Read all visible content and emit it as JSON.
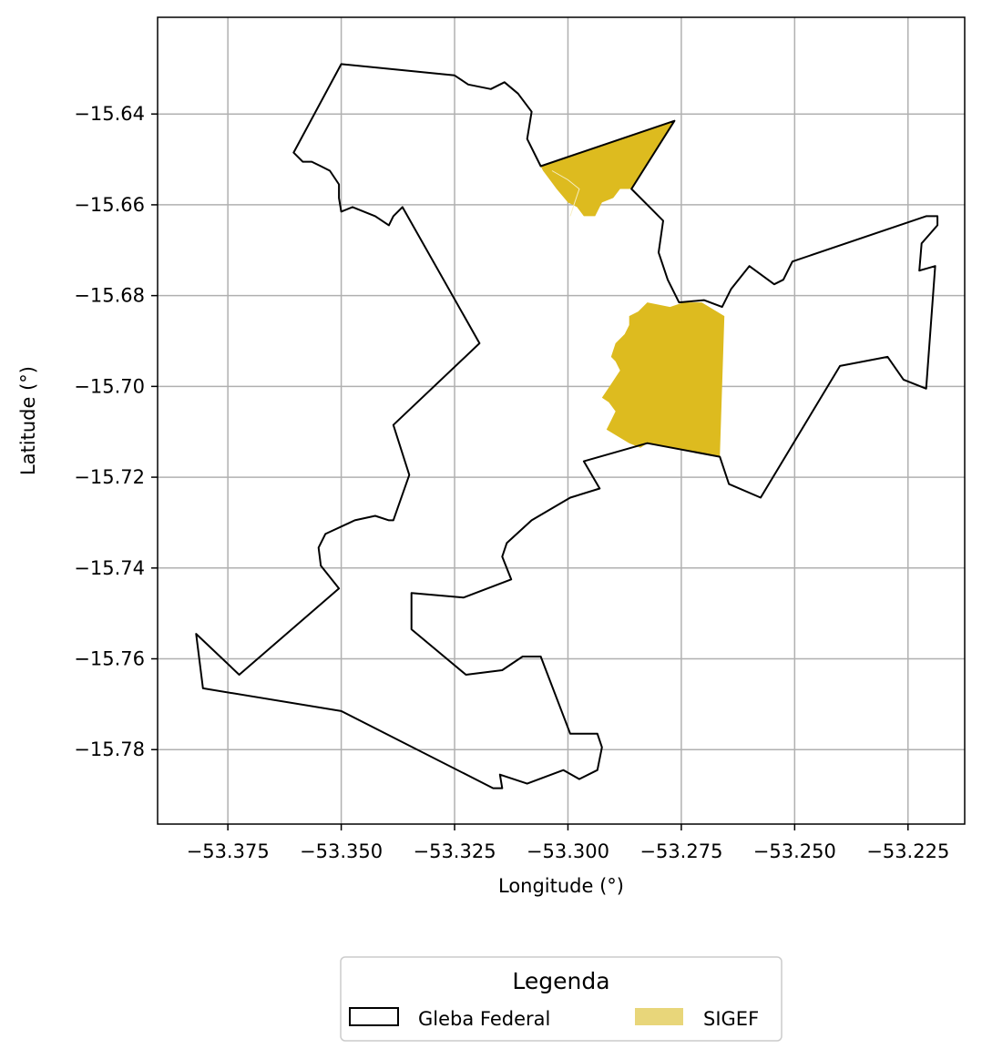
{
  "chart_data": {
    "type": "map",
    "xlabel": "Longitude (°)",
    "ylabel": "Latitude (°)",
    "xlim": [
      -53.3905,
      -53.2125
    ],
    "ylim": [
      -15.7964,
      -15.6187
    ],
    "grid": true,
    "x_ticks": [
      -53.375,
      -53.35,
      -53.325,
      -53.3,
      -53.275,
      -53.25,
      -53.225
    ],
    "x_tick_labels": [
      "−53.375",
      "−53.350",
      "−53.325",
      "−53.300",
      "−53.275",
      "−53.250",
      "−53.225"
    ],
    "y_ticks": [
      -15.64,
      -15.66,
      -15.68,
      -15.7,
      -15.72,
      -15.74,
      -15.76,
      -15.78
    ],
    "y_tick_labels": [
      "−15.64",
      "−15.66",
      "−15.68",
      "−15.70",
      "−15.72",
      "−15.74",
      "−15.76",
      "−15.78"
    ],
    "legend": {
      "title": "Legenda",
      "placement": "bottom-center",
      "entries": [
        "Gleba Federal",
        "SIGEF"
      ]
    },
    "colors": {
      "gleba_edge": "#000000",
      "sigef_fill": "#ddbb1f",
      "sigef_legend_fill": "#e8d67a",
      "grid": "#b0b0b0"
    },
    "gleba_federal_boundary": [
      [
        -53.35,
        -15.629
      ],
      [
        -53.325,
        -15.6315
      ],
      [
        -53.322,
        -15.6335
      ],
      [
        -53.317,
        -15.6345
      ],
      [
        -53.314,
        -15.633
      ],
      [
        -53.311,
        -15.6355
      ],
      [
        -53.308,
        -15.6395
      ],
      [
        -53.309,
        -15.6455
      ],
      [
        -53.306,
        -15.6515
      ],
      [
        -53.2765,
        -15.6415
      ],
      [
        -53.286,
        -15.6565
      ],
      [
        -53.282,
        -15.6605
      ],
      [
        -53.279,
        -15.6635
      ],
      [
        -53.28,
        -15.6705
      ],
      [
        -53.278,
        -15.6765
      ],
      [
        -53.2755,
        -15.6815
      ],
      [
        -53.27,
        -15.681
      ],
      [
        -53.266,
        -15.6825
      ],
      [
        -53.264,
        -15.6785
      ],
      [
        -53.26,
        -15.6735
      ],
      [
        -53.2545,
        -15.6775
      ],
      [
        -53.2525,
        -15.6765
      ],
      [
        -53.2505,
        -15.6725
      ],
      [
        -53.221,
        -15.6625
      ],
      [
        -53.2185,
        -15.6625
      ],
      [
        -53.2185,
        -15.6645
      ],
      [
        -53.222,
        -15.6685
      ],
      [
        -53.2225,
        -15.6745
      ],
      [
        -53.219,
        -15.6735
      ],
      [
        -53.221,
        -15.7005
      ],
      [
        -53.226,
        -15.6985
      ],
      [
        -53.2295,
        -15.6935
      ],
      [
        -53.24,
        -15.6955
      ],
      [
        -53.2575,
        -15.7245
      ],
      [
        -53.2645,
        -15.7215
      ],
      [
        -53.2665,
        -15.7155
      ],
      [
        -53.2825,
        -15.7125
      ],
      [
        -53.2965,
        -15.7165
      ],
      [
        -53.293,
        -15.7225
      ],
      [
        -53.2995,
        -15.7245
      ],
      [
        -53.308,
        -15.7295
      ],
      [
        -53.3135,
        -15.7345
      ],
      [
        -53.3145,
        -15.7375
      ],
      [
        -53.3125,
        -15.7425
      ],
      [
        -53.323,
        -15.7465
      ],
      [
        -53.3345,
        -15.7455
      ],
      [
        -53.3345,
        -15.7535
      ],
      [
        -53.3225,
        -15.7635
      ],
      [
        -53.3145,
        -15.7625
      ],
      [
        -53.31,
        -15.7595
      ],
      [
        -53.306,
        -15.7595
      ],
      [
        -53.2995,
        -15.7765
      ],
      [
        -53.2935,
        -15.7765
      ],
      [
        -53.2925,
        -15.7795
      ],
      [
        -53.2935,
        -15.7845
      ],
      [
        -53.2975,
        -15.7865
      ],
      [
        -53.301,
        -15.7845
      ],
      [
        -53.309,
        -15.7875
      ],
      [
        -53.315,
        -15.7855
      ],
      [
        -53.3145,
        -15.7885
      ],
      [
        -53.3165,
        -15.7885
      ],
      [
        -53.35,
        -15.7715
      ],
      [
        -53.3805,
        -15.7665
      ],
      [
        -53.382,
        -15.7545
      ],
      [
        -53.3725,
        -15.7635
      ],
      [
        -53.3505,
        -15.7445
      ],
      [
        -53.3545,
        -15.7395
      ],
      [
        -53.355,
        -15.7355
      ],
      [
        -53.3535,
        -15.7325
      ],
      [
        -53.347,
        -15.7295
      ],
      [
        -53.3425,
        -15.7285
      ],
      [
        -53.3395,
        -15.7295
      ],
      [
        -53.3385,
        -15.7295
      ],
      [
        -53.335,
        -15.7195
      ],
      [
        -53.3385,
        -15.7085
      ],
      [
        -53.3195,
        -15.6905
      ],
      [
        -53.3365,
        -15.6605
      ],
      [
        -53.3385,
        -15.6625
      ],
      [
        -53.3395,
        -15.6645
      ],
      [
        -53.3425,
        -15.6625
      ],
      [
        -53.3475,
        -15.6605
      ],
      [
        -53.35,
        -15.6615
      ],
      [
        -53.3505,
        -15.6585
      ],
      [
        -53.3505,
        -15.6555
      ],
      [
        -53.3525,
        -15.6525
      ],
      [
        -53.3545,
        -15.6515
      ],
      [
        -53.3565,
        -15.6505
      ],
      [
        -53.3585,
        -15.6505
      ],
      [
        -53.3605,
        -15.6485
      ],
      [
        -53.35,
        -15.629
      ]
    ],
    "sigef_parcels": [
      [
        [
          -53.306,
          -15.6515
        ],
        [
          -53.2765,
          -15.6415
        ],
        [
          -53.286,
          -15.6565
        ],
        [
          -53.2885,
          -15.6565
        ],
        [
          -53.29,
          -15.6585
        ],
        [
          -53.2925,
          -15.6595
        ],
        [
          -53.294,
          -15.6625
        ],
        [
          -53.2965,
          -15.6625
        ],
        [
          -53.298,
          -15.6605
        ],
        [
          -53.3,
          -15.6595
        ],
        [
          -53.3025,
          -15.6565
        ],
        [
          -53.304,
          -15.6545
        ],
        [
          -53.3055,
          -15.6525
        ],
        [
          -53.306,
          -15.6515
        ]
      ],
      [
        [
          -53.2825,
          -15.6815
        ],
        [
          -53.2775,
          -15.6825
        ],
        [
          -53.2745,
          -15.6815
        ],
        [
          -53.2705,
          -15.6815
        ],
        [
          -53.2655,
          -15.6845
        ],
        [
          -53.2665,
          -15.7155
        ],
        [
          -53.2825,
          -15.7125
        ],
        [
          -53.284,
          -15.7135
        ],
        [
          -53.2865,
          -15.7125
        ],
        [
          -53.2915,
          -15.7095
        ],
        [
          -53.2905,
          -15.7075
        ],
        [
          -53.2895,
          -15.7055
        ],
        [
          -53.291,
          -15.7035
        ],
        [
          -53.2925,
          -15.7025
        ],
        [
          -53.2905,
          -15.6995
        ],
        [
          -53.2885,
          -15.6965
        ],
        [
          -53.2895,
          -15.6945
        ],
        [
          -53.2905,
          -15.6935
        ],
        [
          -53.2895,
          -15.6905
        ],
        [
          -53.2875,
          -15.6885
        ],
        [
          -53.2865,
          -15.6865
        ],
        [
          -53.2865,
          -15.6845
        ],
        [
          -53.2845,
          -15.6835
        ],
        [
          -53.2825,
          -15.6815
        ]
      ]
    ],
    "sigef_internal_lines": [
      [
        [
          -53.3035,
          -15.6525
        ],
        [
          -53.3,
          -15.6545
        ],
        [
          -53.2975,
          -15.6565
        ],
        [
          -53.2985,
          -15.6595
        ],
        [
          -53.2995,
          -15.6625
        ]
      ]
    ]
  }
}
